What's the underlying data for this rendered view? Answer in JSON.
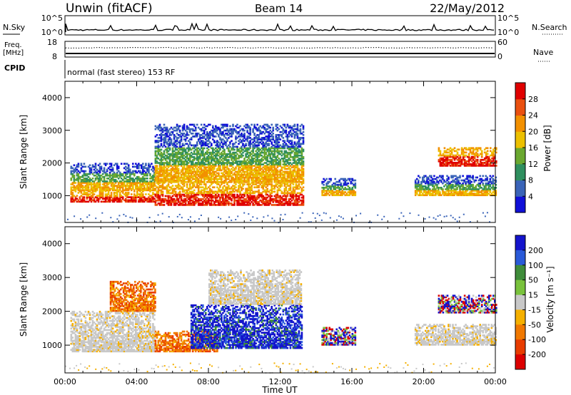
{
  "header": {
    "station": "Unwin (fitACF)",
    "beam": "Beam 14",
    "date": "22/May/2012"
  },
  "top_panels": {
    "nsky_label": "N.Sky",
    "nsearch_label": "N.Search",
    "noise_ticks": [
      "10^5",
      "10^0"
    ],
    "freq_label_1": "Freq.",
    "freq_label_2": "[MHz]",
    "freq_ticks": [
      "18",
      "8"
    ],
    "nave_label": "Nave",
    "nave_ticks": [
      "60",
      "0"
    ],
    "cpid_label": "CPID",
    "cpid_text": "normal (fast stereo) 153 RF"
  },
  "chart_data": [
    {
      "type": "heatmap",
      "name": "power",
      "ylabel": "Slant Range [km]",
      "ylim": [
        180,
        4500
      ],
      "yticks": [
        "1000",
        "2000",
        "3000",
        "4000"
      ],
      "xticks": [
        "00:00",
        "04:00",
        "08:00",
        "12:00",
        "16:00",
        "20:00",
        "00:00"
      ],
      "xlim": [
        0,
        24
      ],
      "colorbar": {
        "label": "Power [dB]",
        "ticks": [
          "4",
          "8",
          "12",
          "16",
          "20",
          "24",
          "28"
        ],
        "colors": [
          "#1010d8",
          "#3a64b8",
          "#2f8f5f",
          "#6aa830",
          "#ecc000",
          "#f29000",
          "#ea5010",
          "#e00000"
        ]
      },
      "echo_regions": [
        {
          "t": [
            0.3,
            5.0
          ],
          "range": [
            800,
            1150
          ],
          "level": "high"
        },
        {
          "t": [
            0.3,
            5.0
          ],
          "range": [
            1150,
            2000
          ],
          "level": "mid"
        },
        {
          "t": [
            5.0,
            13.3
          ],
          "range": [
            700,
            1400
          ],
          "level": "high"
        },
        {
          "t": [
            5.0,
            13.3
          ],
          "range": [
            1400,
            3200
          ],
          "level": "mid"
        },
        {
          "t": [
            14.3,
            16.2
          ],
          "range": [
            1000,
            1500
          ],
          "level": "mid"
        },
        {
          "t": [
            19.5,
            24.0
          ],
          "range": [
            1000,
            1600
          ],
          "level": "mid"
        },
        {
          "t": [
            20.8,
            24.0
          ],
          "range": [
            1900,
            2450
          ],
          "level": "high"
        }
      ]
    },
    {
      "type": "heatmap",
      "name": "velocity",
      "ylabel": "Slant Range [km]",
      "ylim": [
        180,
        4500
      ],
      "yticks": [
        "1000",
        "2000",
        "3000",
        "4000"
      ],
      "xticks": [
        "00:00",
        "04:00",
        "08:00",
        "12:00",
        "16:00",
        "20:00",
        "00:00"
      ],
      "xlim": [
        0,
        24
      ],
      "xlabel": "Time UT",
      "colorbar": {
        "label": "Velocity [m s⁻¹]",
        "ticks": [
          "200",
          "100",
          "50",
          "15",
          "-15",
          "-50",
          "-100",
          "-200"
        ],
        "colors": [
          "#1414cc",
          "#2a5ad8",
          "#3f8c3a",
          "#79c23c",
          "#c8c8c8",
          "#f5b000",
          "#f07800",
          "#e83c00",
          "#dc0000"
        ]
      },
      "echo_regions": [
        {
          "t": [
            0.3,
            5.0
          ],
          "range": [
            800,
            2000
          ],
          "level": "ground"
        },
        {
          "t": [
            2.5,
            5.0
          ],
          "range": [
            2000,
            2900
          ],
          "level": "negative"
        },
        {
          "t": [
            5.0,
            8.5
          ],
          "range": [
            800,
            1400
          ],
          "level": "negative"
        },
        {
          "t": [
            7.0,
            13.2
          ],
          "range": [
            900,
            2200
          ],
          "level": "positive"
        },
        {
          "t": [
            8.0,
            13.2
          ],
          "range": [
            2200,
            3200
          ],
          "level": "ground"
        },
        {
          "t": [
            14.3,
            16.2
          ],
          "range": [
            1000,
            1500
          ],
          "level": "mixed"
        },
        {
          "t": [
            19.5,
            24.0
          ],
          "range": [
            1000,
            1600
          ],
          "level": "ground"
        },
        {
          "t": [
            20.8,
            24.0
          ],
          "range": [
            1950,
            2450
          ],
          "level": "mixed"
        }
      ]
    }
  ]
}
